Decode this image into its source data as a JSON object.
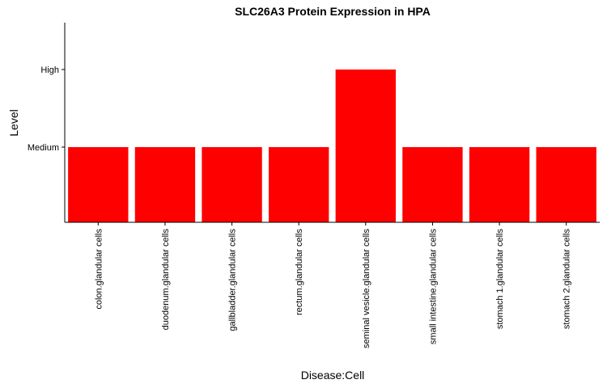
{
  "chart_data": {
    "type": "bar",
    "title": "SLC26A3 Protein Expression in HPA",
    "xlabel": "Disease:Cell",
    "ylabel": "Level",
    "categories": [
      "colon.glandular cells",
      "duodenum.glandular cells",
      "gallbladder.glandular cells",
      "rectum.glandular cells",
      "seminal vesicle.glandular cells",
      "small intestine.glandular cells",
      "stomach 1.glandular cells",
      "stomach 2.glandular cells"
    ],
    "values": [
      "Medium",
      "Medium",
      "Medium",
      "Medium",
      "High",
      "Medium",
      "Medium",
      "Medium"
    ],
    "y_levels": [
      "Medium",
      "High"
    ],
    "bar_color": "#ff0000",
    "grid": false,
    "legend": "none"
  }
}
